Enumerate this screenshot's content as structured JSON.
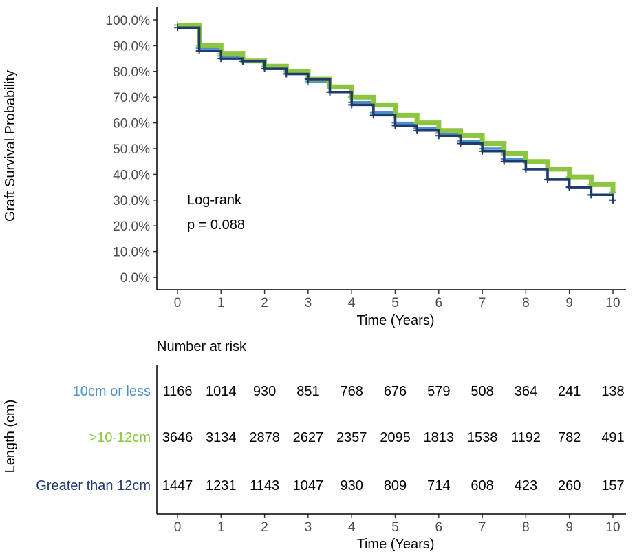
{
  "chart_data": [
    {
      "type": "line",
      "subtype": "kaplan-meier",
      "title": "",
      "xlabel": "Time (Years)",
      "ylabel": "Graft Survival Probability",
      "xlim": [
        0,
        10
      ],
      "ylim": [
        0,
        100
      ],
      "x_ticks": [
        "0",
        "1",
        "2",
        "3",
        "4",
        "5",
        "6",
        "7",
        "8",
        "9",
        "10"
      ],
      "y_ticks": [
        "0.0%",
        "10.0%",
        "20.0%",
        "30.0%",
        "40.0%",
        "50.0%",
        "60.0%",
        "70.0%",
        "80.0%",
        "90.0%",
        "100.0%"
      ],
      "grid": false,
      "legend": "none",
      "annotations": [
        "Log-rank",
        "p = 0.088"
      ],
      "x": [
        0,
        0.5,
        1,
        1.5,
        2,
        2.5,
        3,
        3.5,
        4,
        4.5,
        5,
        5.5,
        6,
        6.5,
        7,
        7.5,
        8,
        8.5,
        9,
        9.5,
        10
      ],
      "series": [
        {
          "name": "10cm or less",
          "color": "#4a90c8",
          "values": [
            98,
            89,
            86,
            84,
            81,
            79,
            76,
            72,
            68,
            64,
            60,
            58,
            56,
            53,
            50,
            46,
            42,
            38,
            35,
            32,
            30
          ]
        },
        {
          "name": ">10-12cm",
          "color": "#8cc540",
          "values": [
            98,
            90,
            87,
            84,
            82,
            80,
            77,
            74,
            70,
            67,
            63,
            60,
            57,
            55,
            52,
            48,
            45,
            42,
            39,
            36,
            33
          ]
        },
        {
          "name": "Greater than 12cm",
          "color": "#1f3a6e",
          "values": [
            97,
            88,
            85,
            84,
            81,
            79,
            77,
            72,
            67,
            63,
            59,
            57,
            55,
            52,
            49,
            45,
            42,
            38,
            35,
            32,
            30
          ]
        }
      ]
    },
    {
      "type": "table",
      "title": "Number at risk",
      "xlabel": "Time (Years)",
      "ylabel": "Length (cm)",
      "x": [
        0,
        1,
        2,
        3,
        4,
        5,
        6,
        7,
        8,
        9,
        10
      ],
      "x_ticks": [
        "0",
        "1",
        "2",
        "3",
        "4",
        "5",
        "6",
        "7",
        "8",
        "9",
        "10"
      ],
      "rows": [
        {
          "label": "10cm or less",
          "color": "#4a90c8",
          "values": [
            "1166",
            "1014",
            "930",
            "851",
            "768",
            "676",
            "579",
            "508",
            "364",
            "241",
            "138"
          ]
        },
        {
          "label": ">10-12cm",
          "color": "#8cc540",
          "values": [
            "3646",
            "3134",
            "2878",
            "2627",
            "2357",
            "2095",
            "1813",
            "1538",
            "1192",
            "782",
            "491"
          ]
        },
        {
          "label": "Greater than 12cm",
          "color": "#1f3a6e",
          "values": [
            "1447",
            "1231",
            "1143",
            "1047",
            "930",
            "809",
            "714",
            "608",
            "423",
            "260",
            "157"
          ]
        }
      ]
    }
  ]
}
